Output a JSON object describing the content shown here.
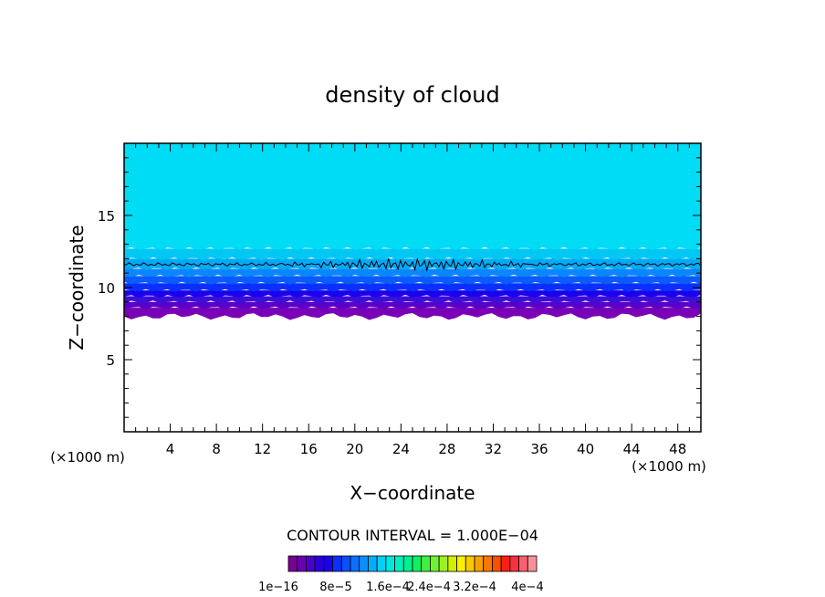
{
  "chart_data": {
    "type": "heatmap",
    "title": "density of cloud",
    "xlabel": "X−coordinate",
    "ylabel": "Z−coordinate",
    "x_unit_left": "(×1000 m)",
    "x_unit_right": "(×1000 m)",
    "xlim": [
      0,
      50
    ],
    "ylim": [
      0,
      20
    ],
    "x_ticks": [
      4,
      8,
      12,
      16,
      20,
      24,
      28,
      32,
      36,
      40,
      44,
      48
    ],
    "y_ticks": [
      5,
      10,
      15
    ],
    "grid": false,
    "field_layers": [
      {
        "z_bottom": 8.0,
        "z_top": 8.6,
        "color": "#7a00b8"
      },
      {
        "z_bottom": 8.6,
        "z_top": 9.0,
        "color": "#5a00c8"
      },
      {
        "z_bottom": 9.0,
        "z_top": 9.4,
        "color": "#3a10d8"
      },
      {
        "z_bottom": 9.4,
        "z_top": 9.8,
        "color": "#1a00ee"
      },
      {
        "z_bottom": 9.8,
        "z_top": 10.3,
        "color": "#0a30ff"
      },
      {
        "z_bottom": 10.3,
        "z_top": 10.8,
        "color": "#0a5cff"
      },
      {
        "z_bottom": 10.8,
        "z_top": 11.3,
        "color": "#0a86ff"
      },
      {
        "z_bottom": 11.3,
        "z_top": 12.0,
        "color": "#00aaf6"
      },
      {
        "z_bottom": 12.0,
        "z_top": 12.7,
        "color": "#00c8f2"
      },
      {
        "z_bottom": 12.7,
        "z_top": 20.0,
        "color": "#00dcf6"
      }
    ],
    "contour_z": 11.6,
    "contour_interval_text": "CONTOUR INTERVAL = 1.000E−04",
    "colorbar": {
      "colors": [
        "#7a0094",
        "#6a00b4",
        "#4a00c8",
        "#2a00d8",
        "#1a00f0",
        "#0a30ff",
        "#0a50ff",
        "#0a70ff",
        "#0a90ff",
        "#00b0ff",
        "#00d0f8",
        "#00e6e0",
        "#00eec0",
        "#00f090",
        "#10f060",
        "#40f040",
        "#70f030",
        "#a0f020",
        "#d0f000",
        "#f8f000",
        "#f8c800",
        "#f8a000",
        "#f87800",
        "#f85000",
        "#f82010",
        "#f83040",
        "#f86070",
        "#f89098"
      ],
      "labels": [
        "1e−16",
        "8e−5",
        "1.6e−4",
        "2.4e−4",
        "3.2e−4",
        "4e−4"
      ]
    }
  }
}
